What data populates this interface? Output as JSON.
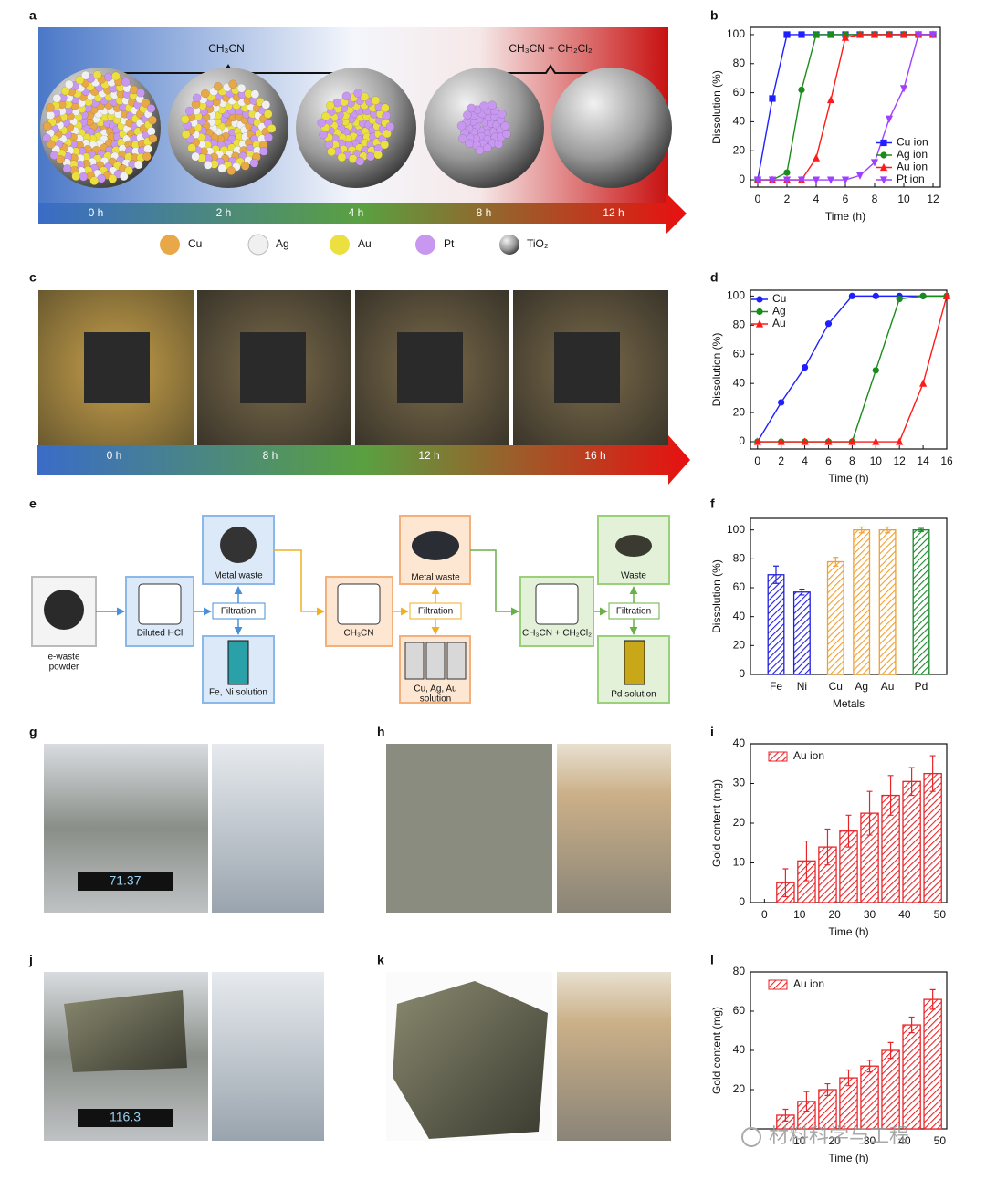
{
  "panel_labels": [
    "a",
    "b",
    "c",
    "d",
    "e",
    "f",
    "g",
    "h",
    "i",
    "j",
    "k",
    "l"
  ],
  "panel_a": {
    "solvents": [
      "CH₃CN",
      "CH₃CN + CH₂Cl₂"
    ],
    "times": [
      "0 h",
      "2 h",
      "4 h",
      "8 h",
      "12 h"
    ],
    "legend": [
      "Cu",
      "Ag",
      "Au",
      "Pt",
      "TiO₂"
    ]
  },
  "panel_c": {
    "times": [
      "0 h",
      "8 h",
      "12 h",
      "16 h"
    ]
  },
  "panel_e": {
    "powder": [
      "e-waste",
      "powder"
    ],
    "step1": {
      "solvent": "Diluted HCl",
      "filtration": "Filtration",
      "solid": "Metal waste",
      "solution": "Fe, Ni solution"
    },
    "step2": {
      "solvent": "CH₃CN",
      "filtration": "Filtration",
      "solid": "Metal waste",
      "solution": [
        "Cu, Ag, Au",
        "solution"
      ]
    },
    "step3": {
      "solvent": "CH₃CN + CH₂Cl₂",
      "filtration": "Filtration",
      "solid": "Waste",
      "solution": "Pd solution"
    }
  },
  "panel_g": {
    "display": "71.37"
  },
  "panel_j": {
    "display": "116.3"
  },
  "watermark": "材料科学与工程",
  "chart_data": [
    {
      "type": "line",
      "xlabel": "Time (h)",
      "ylabel": "Dissolution (%)",
      "x": [
        0,
        1,
        2,
        3,
        4,
        5,
        6,
        7,
        8,
        9,
        10,
        11,
        12
      ],
      "series": [
        {
          "name": "Cu ion",
          "color": "#1f1fff",
          "marker": "square",
          "values": [
            0,
            56,
            100,
            100,
            100,
            100,
            100,
            100,
            100,
            100,
            100,
            100,
            100
          ]
        },
        {
          "name": "Ag ion",
          "color": "#1a8c1a",
          "marker": "circle",
          "values": [
            0,
            0,
            5,
            62,
            100,
            100,
            100,
            100,
            100,
            100,
            100,
            100,
            100
          ]
        },
        {
          "name": "Au ion",
          "color": "#ff1a1a",
          "marker": "triangle",
          "values": [
            0,
            0,
            0,
            0,
            15,
            55,
            98,
            100,
            100,
            100,
            100,
            100,
            100
          ]
        },
        {
          "name": "Pt ion",
          "color": "#a040ff",
          "marker": "triangle-down",
          "values": [
            0,
            0,
            0,
            0,
            0,
            0,
            0,
            3,
            12,
            42,
            63,
            100,
            100
          ]
        }
      ],
      "xlim": [
        -0.5,
        12.5
      ],
      "xticks": [
        0,
        2,
        4,
        6,
        8,
        10,
        12
      ],
      "ylim": [
        -5,
        105
      ],
      "yticks": [
        0,
        20,
        40,
        60,
        80,
        100
      ],
      "legend": "lower right"
    },
    {
      "type": "line",
      "xlabel": "Time (h)",
      "ylabel": "Dissolution (%)",
      "x": [
        0,
        2,
        4,
        6,
        8,
        10,
        12,
        14,
        16
      ],
      "series": [
        {
          "name": "Cu",
          "color": "#1f1fff",
          "marker": "circle",
          "values": [
            0,
            27,
            51,
            81,
            100,
            100,
            100,
            100,
            100
          ]
        },
        {
          "name": "Ag",
          "color": "#1a8c1a",
          "marker": "circle",
          "values": [
            0,
            0,
            0,
            0,
            0,
            49,
            98,
            100,
            100
          ]
        },
        {
          "name": "Au",
          "color": "#ff1a1a",
          "marker": "triangle",
          "values": [
            0,
            0,
            0,
            0,
            0,
            0,
            0,
            40,
            100
          ]
        }
      ],
      "xlim": [
        -0.6,
        16
      ],
      "xticks": [
        0,
        2,
        4,
        6,
        8,
        10,
        12,
        14,
        16
      ],
      "ylim": [
        -5,
        104
      ],
      "yticks": [
        0,
        20,
        40,
        60,
        80,
        100
      ],
      "legend": "upper left"
    },
    {
      "type": "bar",
      "xlabel": "Metals",
      "ylabel": "Dissolution (%)",
      "hatch": true,
      "categories": [
        "Fe",
        "Ni",
        "Cu",
        "Ag",
        "Au",
        "Pd"
      ],
      "values": [
        69,
        57,
        78,
        100,
        100,
        100
      ],
      "errors": [
        6,
        2,
        3,
        2,
        2,
        1
      ],
      "colors": [
        "#2020e0",
        "#2020e0",
        "#f0a030",
        "#f0a030",
        "#f0a030",
        "#1a8a2a"
      ],
      "ylim": [
        0,
        108
      ],
      "yticks": [
        0,
        20,
        40,
        60,
        80,
        100
      ]
    },
    {
      "type": "bar",
      "xlabel": "Time (h)",
      "ylabel": "Gold content (mg)",
      "hatch": true,
      "x": [
        6,
        12,
        18,
        24,
        30,
        36,
        42,
        48
      ],
      "series": [
        {
          "name": "Au ion",
          "color": "#e8262a",
          "values": [
            5,
            10.5,
            14,
            18,
            22.5,
            27,
            30.5,
            32.5
          ],
          "errors": [
            3.5,
            5,
            4.5,
            4,
            5.5,
            5,
            3.5,
            4.5
          ]
        }
      ],
      "xlim": [
        -4,
        52
      ],
      "xticks": [
        0,
        10,
        20,
        30,
        40,
        50
      ],
      "ylim": [
        0,
        40
      ],
      "yticks": [
        0,
        10,
        20,
        30,
        40
      ],
      "legend": "upper left"
    },
    {
      "type": "bar",
      "xlabel": "Time (h)",
      "ylabel": "Gold content (mg)",
      "hatch": true,
      "x": [
        6,
        12,
        18,
        24,
        30,
        36,
        42,
        48
      ],
      "series": [
        {
          "name": "Au ion",
          "color": "#e8262a",
          "values": [
            7,
            14,
            20,
            26,
            32,
            40,
            53,
            66
          ],
          "errors": [
            3,
            5,
            3,
            4,
            3,
            4,
            4,
            5
          ]
        }
      ],
      "xlim": [
        -4,
        52
      ],
      "xticks": [
        10,
        20,
        30,
        40,
        50
      ],
      "ylim": [
        0,
        80
      ],
      "yticks": [
        20,
        40,
        60,
        80
      ],
      "legend": "upper left"
    }
  ]
}
